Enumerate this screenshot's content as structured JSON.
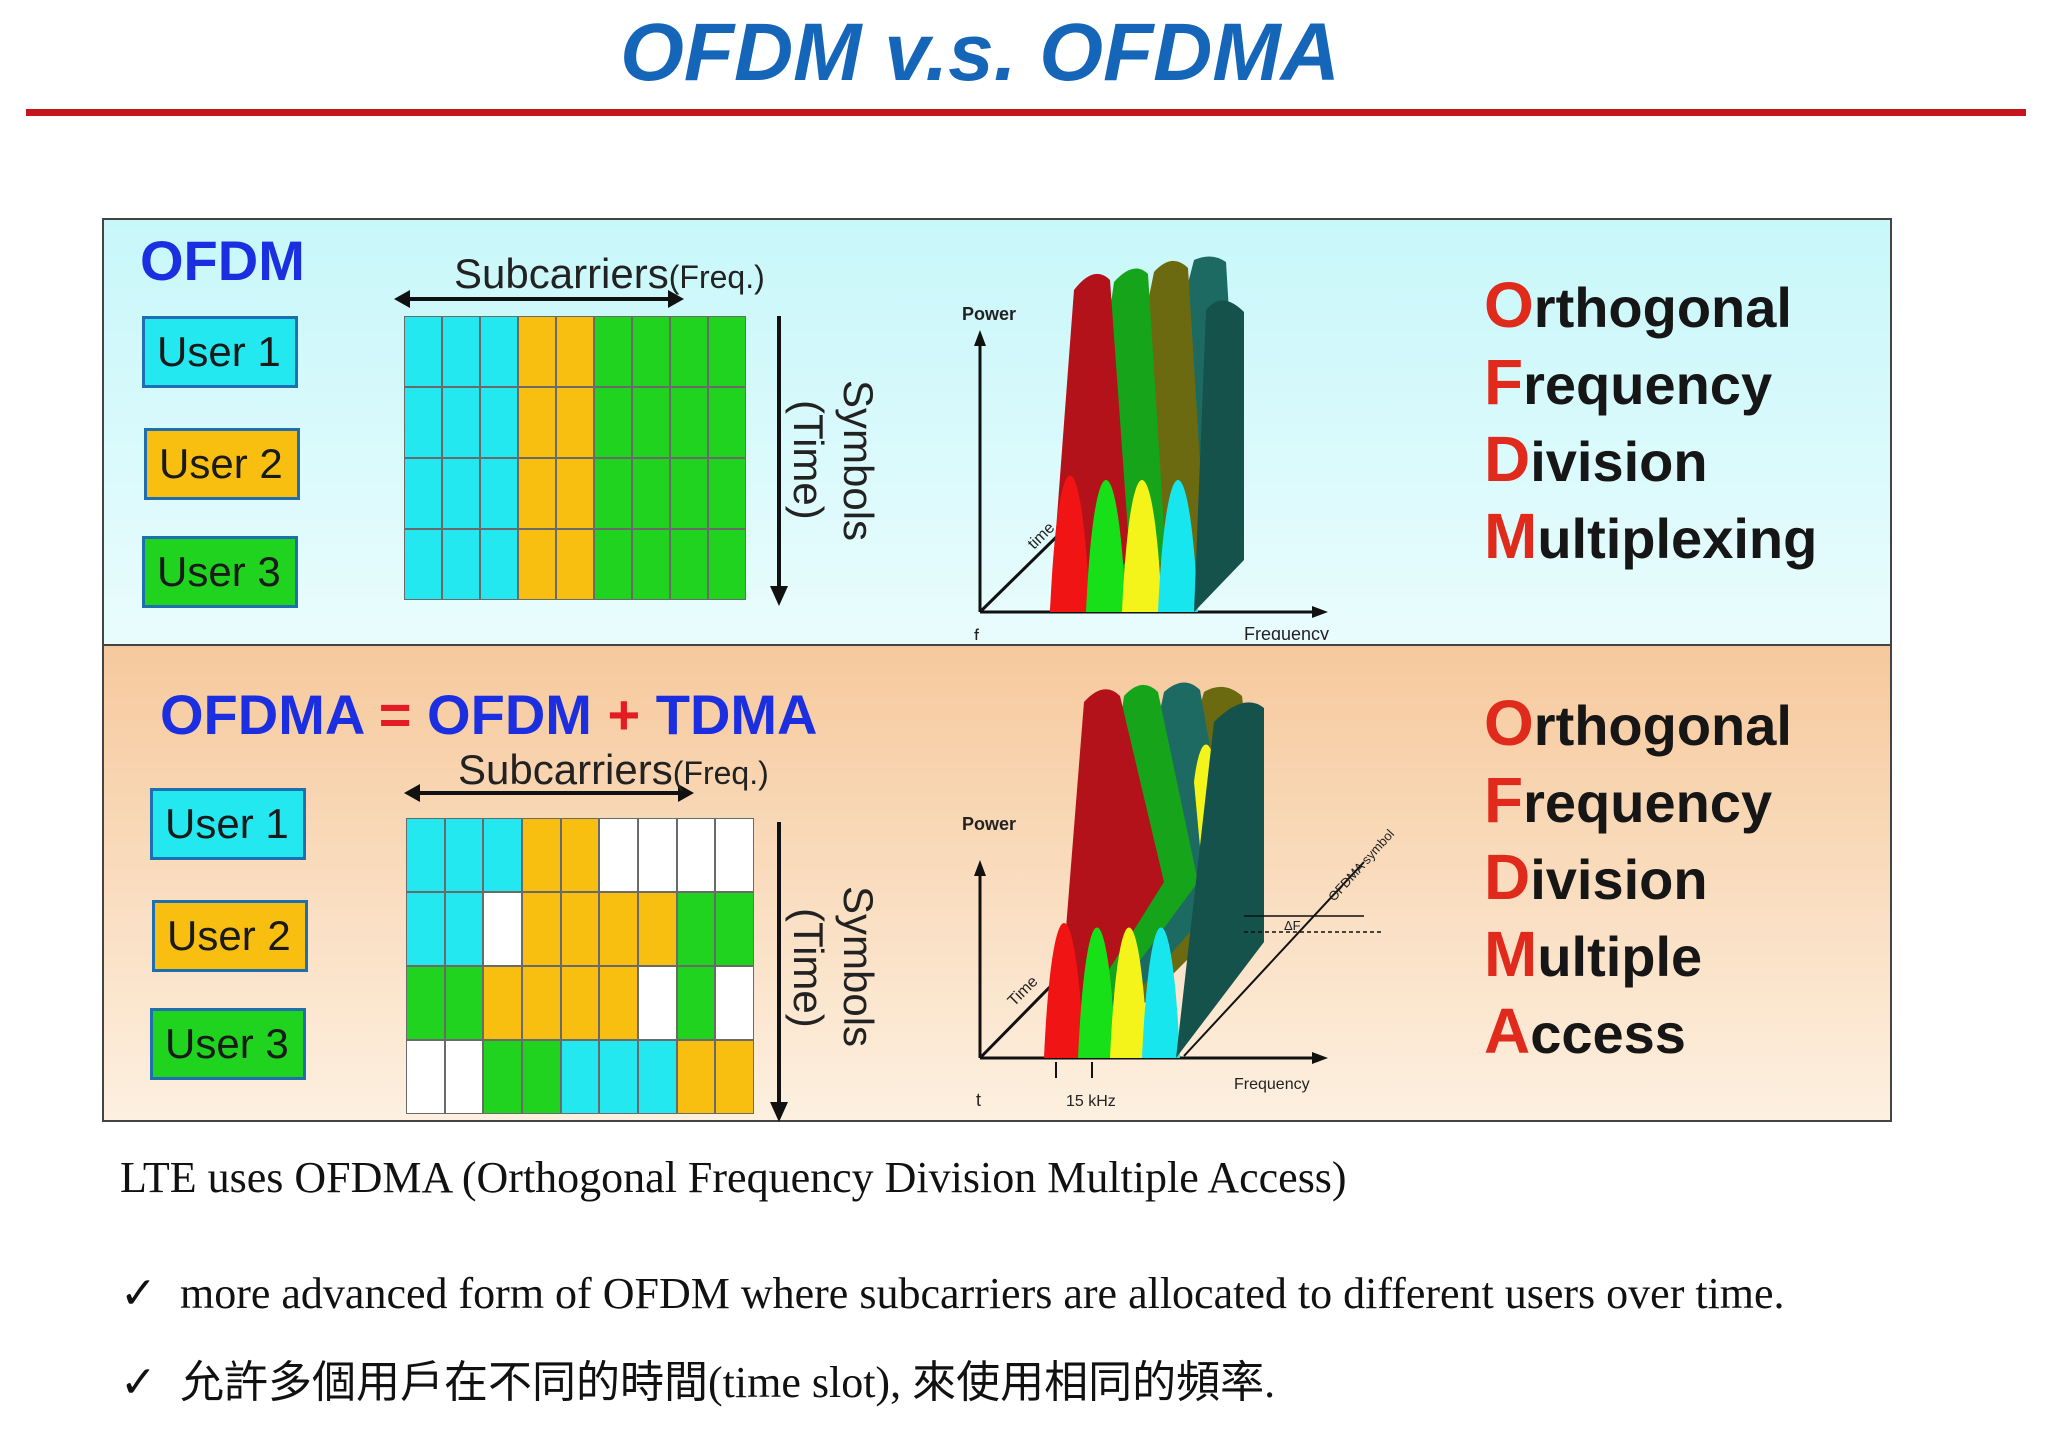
{
  "title": "OFDM v.s. OFDMA",
  "colors": {
    "user1": "#24e8f0",
    "user2": "#f8be10",
    "user3": "#1fd31f",
    "title": "#1565b8",
    "rule": "#c5161d",
    "initial": "#e02b1c"
  },
  "ofdm": {
    "title": "OFDM",
    "users": [
      "User 1",
      "User 2",
      "User 3"
    ],
    "subcarriers": "Subcarriers",
    "freq": "(Freq.)",
    "symbols": "Symbols",
    "time": "(Time)",
    "grid": [
      [
        1,
        1,
        1,
        2,
        2,
        3,
        3,
        3,
        3
      ],
      [
        1,
        1,
        1,
        2,
        2,
        3,
        3,
        3,
        3
      ],
      [
        1,
        1,
        1,
        2,
        2,
        3,
        3,
        3,
        3
      ],
      [
        1,
        1,
        1,
        2,
        2,
        3,
        3,
        3,
        3
      ]
    ],
    "plot": {
      "power": "Power",
      "time": "time",
      "frequency": "Frequency",
      "origin": "f"
    },
    "acronym": [
      {
        "initial": "O",
        "rest": "rthogonal"
      },
      {
        "initial": "F",
        "rest": "requency"
      },
      {
        "initial": "D",
        "rest": "ivision"
      },
      {
        "initial": "M",
        "rest": "ultiplexing"
      }
    ]
  },
  "ofdma": {
    "title_a": "OFDMA",
    "eq": "=",
    "title_b": "OFDM",
    "plus": "+",
    "title_c": "TDMA",
    "users": [
      "User 1",
      "User 2",
      "User 3"
    ],
    "subcarriers": "Subcarriers",
    "freq": "(Freq.)",
    "symbols": "Symbols",
    "time": "(Time)",
    "grid": [
      [
        1,
        1,
        1,
        2,
        2,
        0,
        0,
        0,
        0
      ],
      [
        1,
        1,
        0,
        2,
        2,
        2,
        2,
        3,
        3
      ],
      [
        3,
        3,
        2,
        2,
        2,
        2,
        0,
        3,
        0
      ],
      [
        0,
        0,
        3,
        3,
        1,
        1,
        1,
        2,
        2
      ]
    ],
    "plot": {
      "power": "Power",
      "time": "Time",
      "frequency": "Frequency",
      "origin": "t",
      "spacing": "15 kHz",
      "symbol": "OFDMA symbol",
      "df": "ΔF"
    },
    "acronym": [
      {
        "initial": "O",
        "rest": "rthogonal"
      },
      {
        "initial": "F",
        "rest": "requency"
      },
      {
        "initial": "D",
        "rest": "ivision"
      },
      {
        "initial": "M",
        "rest": "ultiple"
      },
      {
        "initial": "A",
        "rest": "ccess"
      }
    ]
  },
  "caption": "LTE uses OFDMA (Orthogonal Frequency Division Multiple Access)",
  "bullets": [
    {
      "mark": "✓",
      "text": "more advanced form of OFDM where subcarriers are allocated to different users over time."
    },
    {
      "mark": "✓",
      "text": "允許多個用戶在不同的時間(time slot), 來使用相同的頻率."
    }
  ]
}
